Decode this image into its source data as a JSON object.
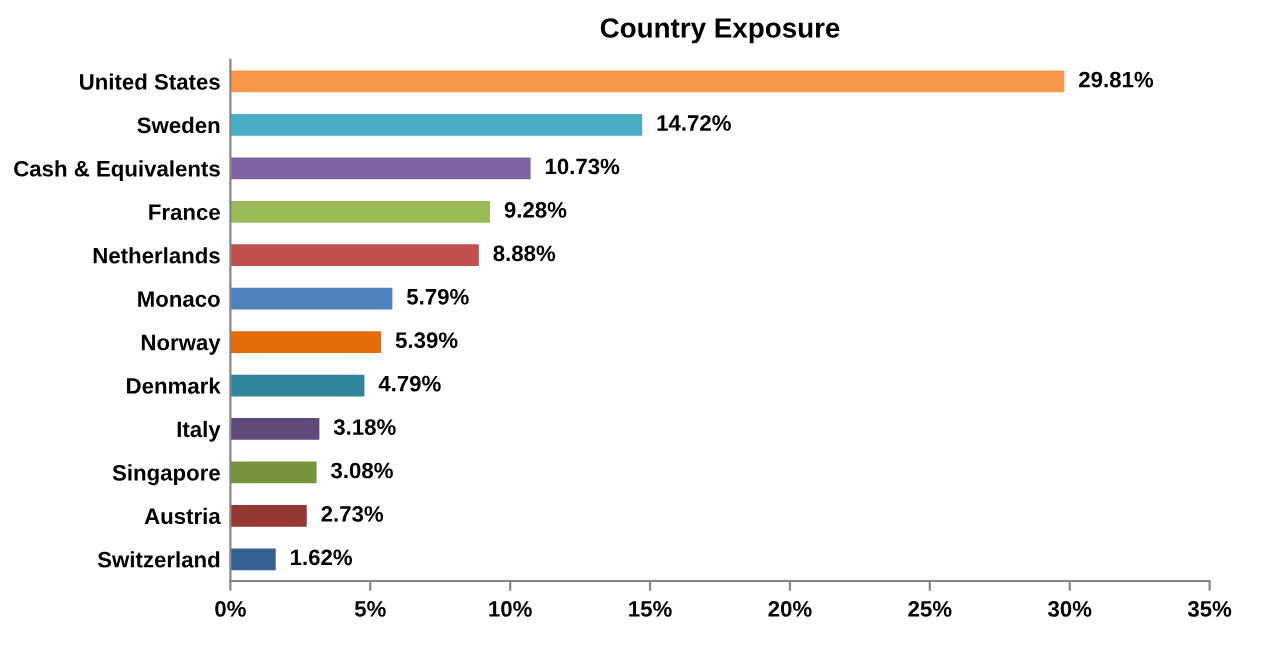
{
  "chart_data": {
    "type": "bar",
    "orientation": "horizontal",
    "title": "Country Exposure",
    "categories": [
      "United States",
      "Sweden",
      "Cash & Equivalents",
      "France",
      "Netherlands",
      "Monaco",
      "Norway",
      "Denmark",
      "Italy",
      "Singapore",
      "Austria",
      "Switzerland"
    ],
    "values": [
      29.81,
      14.72,
      10.73,
      9.28,
      8.88,
      5.79,
      5.39,
      4.79,
      3.18,
      3.08,
      2.73,
      1.62
    ],
    "value_labels": [
      "29.81%",
      "14.72%",
      "10.73%",
      "9.28%",
      "8.88%",
      "5.79%",
      "5.39%",
      "4.79%",
      "3.18%",
      "3.08%",
      "2.73%",
      "1.62%"
    ],
    "colors": [
      "#f79646",
      "#4bacc6",
      "#8064a2",
      "#9bbb59",
      "#c0504d",
      "#4f81bd",
      "#e46c0a",
      "#31859c",
      "#604a7b",
      "#77933c",
      "#953735",
      "#376092"
    ],
    "xlim": [
      0,
      35
    ],
    "xticks": [
      {
        "value": 0,
        "label": "0%"
      },
      {
        "value": 5,
        "label": "5%"
      },
      {
        "value": 10,
        "label": "10%"
      },
      {
        "value": 15,
        "label": "15%"
      },
      {
        "value": 20,
        "label": "20%"
      },
      {
        "value": 25,
        "label": "25%"
      },
      {
        "value": 30,
        "label": "30%"
      },
      {
        "value": 35,
        "label": "35%"
      }
    ],
    "grid": false,
    "legend": false
  }
}
